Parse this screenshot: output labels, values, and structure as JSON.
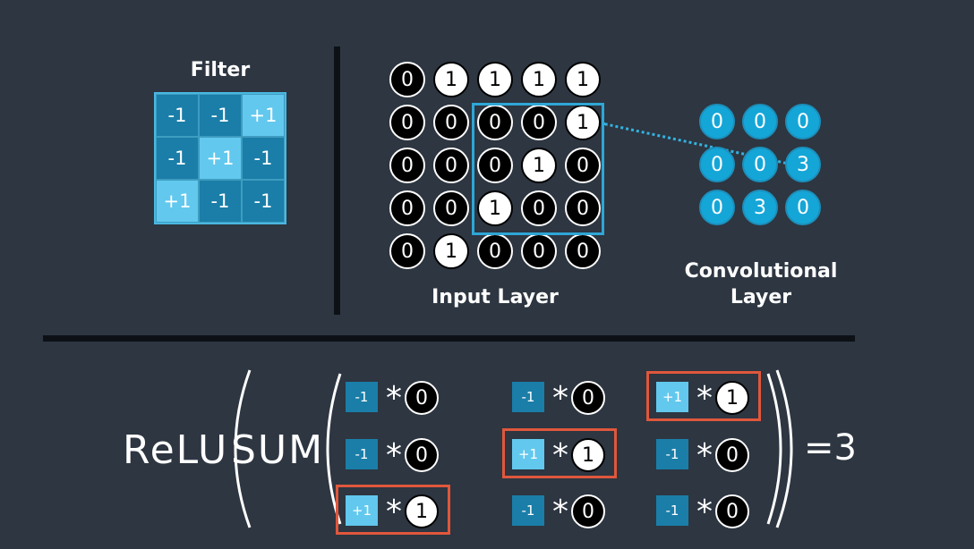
{
  "filter": {
    "title": "Filter",
    "cells": [
      [
        "-1",
        "-1",
        "+1"
      ],
      [
        "-1",
        "+1",
        "-1"
      ],
      [
        "+1",
        "-1",
        "-1"
      ]
    ]
  },
  "input_layer": {
    "title": "Input Layer",
    "cells": [
      [
        "0",
        "1",
        "1",
        "1",
        "1"
      ],
      [
        "0",
        "0",
        "0",
        "0",
        "1"
      ],
      [
        "0",
        "0",
        "0",
        "1",
        "0"
      ],
      [
        "0",
        "0",
        "1",
        "0",
        "0"
      ],
      [
        "0",
        "1",
        "0",
        "0",
        "0"
      ]
    ],
    "window": {
      "row": 1,
      "col": 2,
      "size": 3
    }
  },
  "conv_layer": {
    "title_line1": "Convolutional",
    "title_line2": "Layer",
    "cells": [
      [
        "0",
        "0",
        "0"
      ],
      [
        "0",
        "0",
        "3"
      ],
      [
        "0",
        "3",
        "0"
      ]
    ],
    "linked_cell": {
      "row": 1,
      "col": 2
    }
  },
  "equation": {
    "relu": "ReLU",
    "sum": "SUM",
    "star": "*",
    "result": "=3",
    "terms": [
      [
        {
          "w": "-1",
          "x": "0"
        },
        {
          "w": "-1",
          "x": "0"
        },
        {
          "w": "+1",
          "x": "1",
          "hl": true
        }
      ],
      [
        {
          "w": "-1",
          "x": "0"
        },
        {
          "w": "+1",
          "x": "1",
          "hl": true
        },
        {
          "w": "-1",
          "x": "0"
        }
      ],
      [
        {
          "w": "+1",
          "x": "1",
          "hl": true
        },
        {
          "w": "-1",
          "x": "0"
        },
        {
          "w": "-1",
          "x": "0"
        }
      ]
    ]
  },
  "colors": {
    "background": "#2d3641",
    "filter_negative": "#1a7ea8",
    "filter_positive": "#62c8ee",
    "conv_cell": "#15a6d8",
    "highlight": "#e0573c"
  }
}
